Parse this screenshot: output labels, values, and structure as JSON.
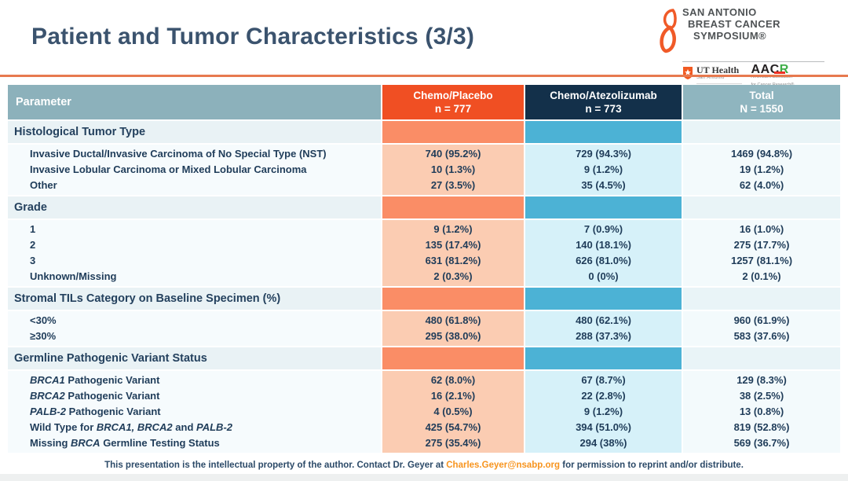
{
  "slide": {
    "title": "Patient and Tumor Characteristics (3/3)",
    "footer": {
      "pre": "This presentation is the intellectual property of the author.  Contact Dr. Geyer at ",
      "email": "Charles.Geyer@nsabp.org",
      "post": " for permission to reprint and/or distribute."
    }
  },
  "logos": {
    "sabcs": {
      "line1": "SAN ANTONIO",
      "line2": "BREAST CANCER",
      "line3": "SYMPOSIUM®"
    },
    "uthealth": {
      "name": "UT Health",
      "sub": "San Antonio",
      "center": "Mays Cancer Center"
    },
    "aacr": {
      "black": "AAC",
      "green": "R",
      "sub1": "American Association",
      "sub2": "for Cancer Research®"
    }
  },
  "table": {
    "header": {
      "parameter": "Parameter",
      "columns": [
        {
          "label": "Chemo/Placebo",
          "n": "n = 777"
        },
        {
          "label": "Chemo/Atezolizumab",
          "n": "n = 773"
        },
        {
          "label": "Total",
          "n": "N = 1550"
        }
      ]
    },
    "sections": [
      {
        "title": "Histological Tumor Type",
        "rows": [
          {
            "label": "Invasive Ductal/Invasive Carcinoma of No Special Type (NST)",
            "values": [
              "740 (95.2%)",
              "729 (94.3%)",
              "1469 (94.8%)"
            ]
          },
          {
            "label": "Invasive Lobular Carcinoma or Mixed Lobular Carcinoma",
            "values": [
              "10 (1.3%)",
              "9 (1.2%)",
              "19 (1.2%)"
            ]
          },
          {
            "label": "Other",
            "values": [
              "27 (3.5%)",
              "35 (4.5%)",
              "62 (4.0%)"
            ]
          }
        ]
      },
      {
        "title": "Grade",
        "rows": [
          {
            "label": "1",
            "values": [
              "9 (1.2%)",
              "7 (0.9%)",
              "16 (1.0%)"
            ]
          },
          {
            "label": "2",
            "values": [
              "135 (17.4%)",
              "140 (18.1%)",
              "275 (17.7%)"
            ]
          },
          {
            "label": "3",
            "values": [
              "631 (81.2%)",
              "626 (81.0%)",
              "1257 (81.1%)"
            ]
          },
          {
            "label": "Unknown/Missing",
            "values": [
              "2 (0.3%)",
              "0 (0%)",
              "2 (0.1%)"
            ]
          }
        ]
      },
      {
        "title": "Stromal TILs Category on Baseline Specimen (%)",
        "rows": [
          {
            "label": "<30%",
            "values": [
              "480 (61.8%)",
              "480 (62.1%)",
              "960 (61.9%)"
            ]
          },
          {
            "label": "≥30%",
            "values": [
              "295 (38.0%)",
              "288 (37.3%)",
              "583 (37.6%)"
            ]
          }
        ]
      },
      {
        "title": "Germline Pathogenic Variant Status",
        "rows": [
          {
            "label": "*BRCA1* Pathogenic Variant",
            "values": [
              "62 (8.0%)",
              "67 (8.7%)",
              "129 (8.3%)"
            ]
          },
          {
            "label": "*BRCA2* Pathogenic Variant",
            "values": [
              "16 (2.1%)",
              "22 (2.8%)",
              "38 (2.5%)"
            ]
          },
          {
            "label": "*PALB-2* Pathogenic Variant",
            "values": [
              "4 (0.5%)",
              "9 (1.2%)",
              "13 (0.8%)"
            ]
          },
          {
            "label": "Wild Type for *BRCA1, BRCA2* and *PALB-2*",
            "values": [
              "425 (54.7%)",
              "394 (51.0%)",
              "819 (52.8%)"
            ]
          },
          {
            "label": "Missing *BRCA* Germline Testing Status",
            "values": [
              "275 (35.4%)",
              "294 (38%)",
              "569 (36.7%)"
            ]
          }
        ]
      }
    ]
  },
  "colors": {
    "title_text": "#3b536e",
    "rule_orange": "#e7794f",
    "header_parameter_bg": "#8cb1bb",
    "header_chemo_bg": "#f04f23",
    "header_atezo_bg": "#13304a",
    "header_total_bg": "#8fb5bf",
    "section_chemo_bg": "#fa8d66",
    "section_atezo_bg": "#4cb2d5",
    "data_chemo_bg": "#fbccb2",
    "data_atezo_bg": "#d6f1f9",
    "data_text": "#1f3c59",
    "footer_email": "#f7941e",
    "sabcs_ribbon": "#f05a28",
    "aacr_green": "#3fae49",
    "aacr_red": "#ee3124"
  }
}
